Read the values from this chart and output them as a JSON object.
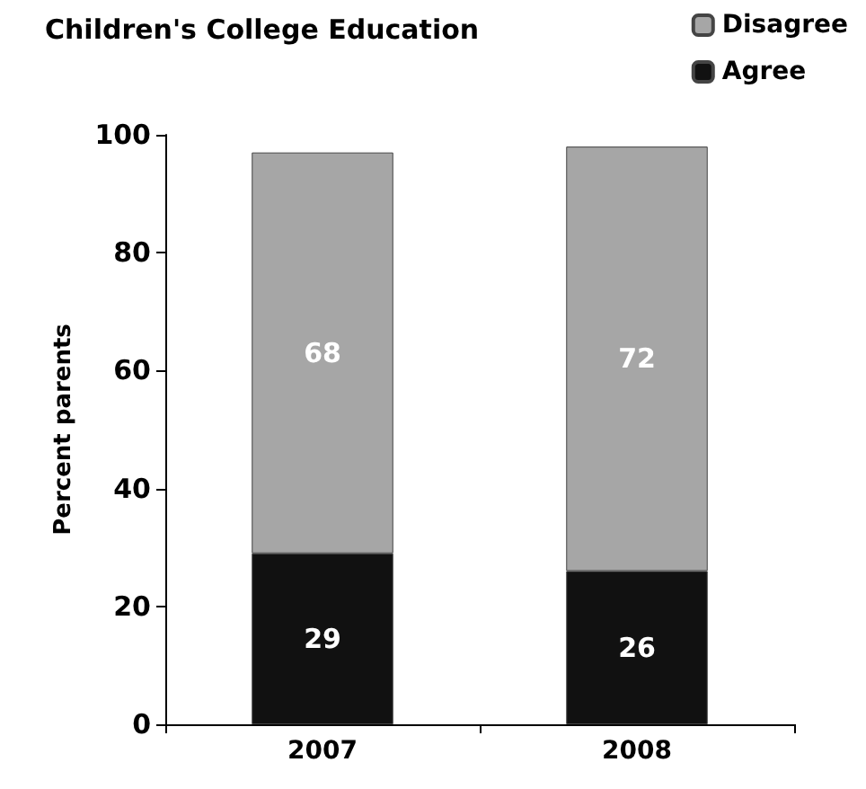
{
  "chart_data": {
    "type": "bar",
    "title": "Children's College Education",
    "ylabel": "Percent parents",
    "categories": [
      "2007",
      "2008"
    ],
    "series": [
      {
        "name": "Agree",
        "color": "#111111",
        "values": [
          29,
          26
        ]
      },
      {
        "name": "Disagree",
        "color": "#a6a6a6",
        "values": [
          68,
          72
        ]
      }
    ],
    "stacked": true,
    "data_labels": true,
    "ylim": [
      0,
      100
    ],
    "yticks": [
      0,
      20,
      40,
      60,
      80,
      100
    ],
    "grid": false,
    "legend": "top right"
  }
}
